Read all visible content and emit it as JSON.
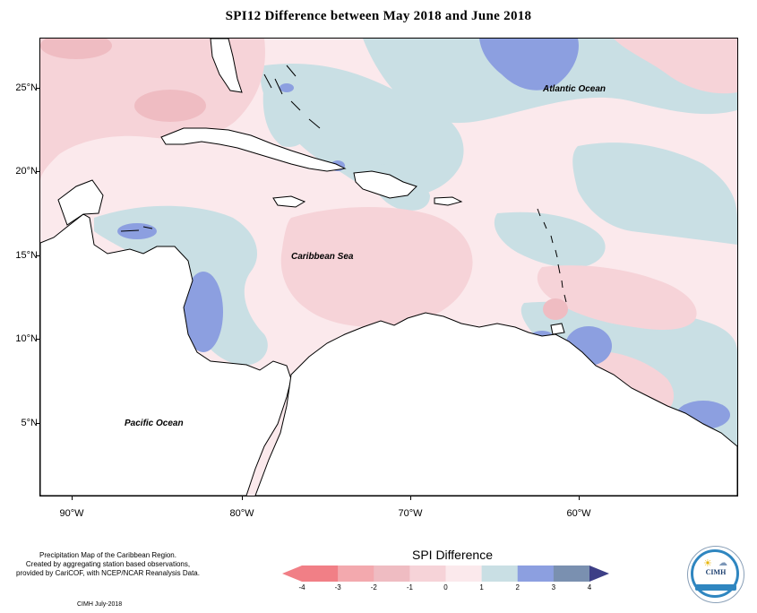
{
  "title": "SPI12 Difference between May 2018 and June 2018",
  "map": {
    "lat_labels": [
      "25°N",
      "20°N",
      "15°N",
      "10°N",
      "5°N"
    ],
    "lon_labels": [
      "90°W",
      "80°W",
      "70°W",
      "60°W"
    ],
    "ocean_labels": {
      "atlantic": "Atlantic Ocean",
      "caribbean": "Caribbean Sea",
      "pacific": "Pacific Ocean"
    },
    "colors": {
      "land": "#ffffff",
      "near_zero_negative": "#fbe9ec",
      "light_negative": "#f6d3d8",
      "medium_negative": "#efbcc2",
      "light_positive": "#c9dfe4",
      "medium_positive": "#8c9fe0",
      "coast": "#000000"
    }
  },
  "legend": {
    "title": "SPI Difference",
    "ticks": [
      "-4",
      "-3",
      "-2",
      "-1",
      "0",
      "1",
      "2",
      "3",
      "4"
    ],
    "colors": [
      "#f17f86",
      "#f3a9ae",
      "#efbcc2",
      "#f6d3d8",
      "#fbe9ec",
      "#c9dfe4",
      "#8c9fe0",
      "#7a90b0",
      "#556087"
    ],
    "extend_colors": {
      "min": "#f17f86",
      "max": "#3d3f86"
    }
  },
  "footer": {
    "line1": "Precipitation Map of the Caribbean Region.",
    "line2": "Created by aggregating station based observations,",
    "line3": "provided by CariCOF, with NCEP/NCAR Reanalysis Data.",
    "credit": "CIMH July-2018"
  },
  "logo": {
    "text": "CIMH"
  }
}
